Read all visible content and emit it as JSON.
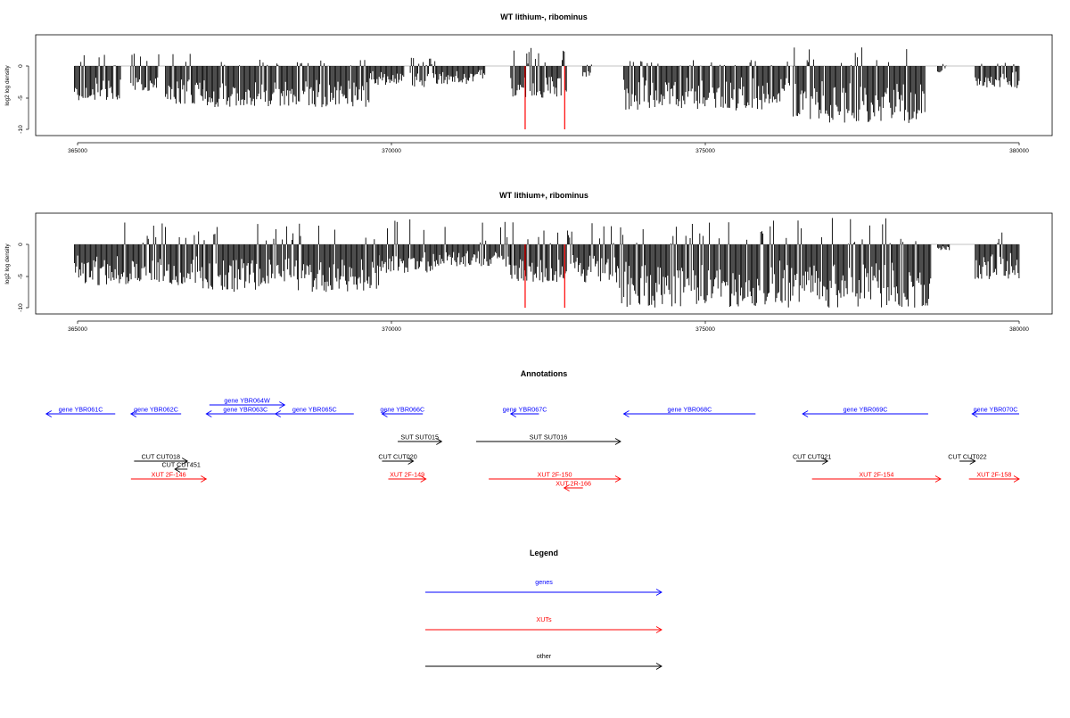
{
  "chart_data": [
    {
      "type": "bar",
      "title": "WT lithium-, ribominus",
      "ylabel": "log2 log density",
      "xlabel": "",
      "xlim": [
        364950,
        380500
      ],
      "ylim": [
        -10.5,
        5
      ],
      "xticks": [
        "365000",
        "370000",
        "375000",
        "380000"
      ],
      "yticks": [
        "0",
        "-5",
        "-10"
      ],
      "grid": false,
      "series_color": "#000000",
      "highlight_color": "#ff0000",
      "highlights": [
        {
          "x": 372130,
          "y": -10
        },
        {
          "x": 372760,
          "y": -10
        }
      ],
      "baseline_span": [
        364950,
        380000
      ],
      "coverage_segments": [
        {
          "start": 364950,
          "end": 365700,
          "min": -5.5,
          "max": 2.0
        },
        {
          "start": 365850,
          "end": 366300,
          "min": -4,
          "max": 2.2
        },
        {
          "start": 366400,
          "end": 367000,
          "min": -6,
          "max": 2.5
        },
        {
          "start": 367000,
          "end": 369650,
          "min": -6.5,
          "max": 1.0
        },
        {
          "start": 369650,
          "end": 370200,
          "min": -3,
          "max": 0
        },
        {
          "start": 370300,
          "end": 370700,
          "min": -3.5,
          "max": 1.5
        },
        {
          "start": 370700,
          "end": 371300,
          "min": -3,
          "max": 0
        },
        {
          "start": 371300,
          "end": 371500,
          "min": -2,
          "max": 1.0
        },
        {
          "start": 371900,
          "end": 372800,
          "min": -5,
          "max": 3.0
        },
        {
          "start": 373050,
          "end": 373200,
          "min": -2,
          "max": 1.0
        },
        {
          "start": 373700,
          "end": 376350,
          "min": -7,
          "max": 1.0
        },
        {
          "start": 376400,
          "end": 378500,
          "min": -9,
          "max": 3.0
        },
        {
          "start": 378700,
          "end": 378850,
          "min": -1,
          "max": 1.0
        },
        {
          "start": 379300,
          "end": 380000,
          "min": -3.5,
          "max": 0.5
        }
      ]
    },
    {
      "type": "bar",
      "title": "WT lithium+, ribominus",
      "ylabel": "log2 log density",
      "xlabel": "",
      "xlim": [
        364950,
        380500
      ],
      "ylim": [
        -10.5,
        5
      ],
      "xticks": [
        "365000",
        "370000",
        "375000",
        "380000"
      ],
      "yticks": [
        "0",
        "-5",
        "-10"
      ],
      "grid": false,
      "series_color": "#000000",
      "highlight_color": "#ff0000",
      "highlights": [
        {
          "x": 372130,
          "y": -10
        },
        {
          "x": 372760,
          "y": -10
        }
      ],
      "baseline_span": [
        364950,
        380000
      ],
      "coverage_segments": [
        {
          "start": 364950,
          "end": 367000,
          "min": -6.5,
          "max": 3.5
        },
        {
          "start": 367000,
          "end": 369800,
          "min": -7.5,
          "max": 3.5
        },
        {
          "start": 369800,
          "end": 370700,
          "min": -4.5,
          "max": 4.2
        },
        {
          "start": 370700,
          "end": 371900,
          "min": -3.5,
          "max": 4.0
        },
        {
          "start": 371900,
          "end": 373600,
          "min": -6,
          "max": 3.8
        },
        {
          "start": 373600,
          "end": 376000,
          "min": -10,
          "max": 3.5
        },
        {
          "start": 376000,
          "end": 378600,
          "min": -10,
          "max": 4.2
        },
        {
          "start": 378700,
          "end": 378900,
          "min": -1,
          "max": 2.0
        },
        {
          "start": 379300,
          "end": 380000,
          "min": -5.5,
          "max": 2.0
        }
      ]
    },
    {
      "type": "annotation-track",
      "title": "Annotations",
      "xlim": [
        364950,
        380500
      ],
      "features": [
        {
          "label": "gene YBR061C",
          "start": 365600,
          "end": 364500,
          "row": 0,
          "kind": "gene"
        },
        {
          "label": "gene YBR062C",
          "start": 366650,
          "end": 365850,
          "row": 0,
          "kind": "gene"
        },
        {
          "label": "gene YBR064W",
          "start": 367100,
          "end": 368300,
          "row": -1,
          "kind": "gene"
        },
        {
          "label": "gene YBR063C",
          "start": 368300,
          "end": 367050,
          "row": 0,
          "kind": "gene"
        },
        {
          "label": "gene YBR065C",
          "start": 369400,
          "end": 368150,
          "row": 0,
          "kind": "gene"
        },
        {
          "label": "gene YBR066C",
          "start": 370500,
          "end": 369850,
          "row": 0,
          "kind": "gene"
        },
        {
          "label": "gene YBR067C",
          "start": 372350,
          "end": 371900,
          "row": 0,
          "kind": "gene"
        },
        {
          "label": "gene YBR068C",
          "start": 375800,
          "end": 373700,
          "row": 0,
          "kind": "gene"
        },
        {
          "label": "gene YBR069C",
          "start": 378550,
          "end": 376550,
          "row": 0,
          "kind": "gene"
        },
        {
          "label": "gene YBR070C",
          "start": 380000,
          "end": 379250,
          "row": 0,
          "kind": "gene"
        },
        {
          "label": "SUT SUT015",
          "start": 370100,
          "end": 370800,
          "row": 1,
          "kind": "other"
        },
        {
          "label": "SUT SUT016",
          "start": 371350,
          "end": 373650,
          "row": 1,
          "kind": "other"
        },
        {
          "label": "CUT CUT018",
          "start": 365900,
          "end": 366750,
          "row": 2,
          "kind": "other"
        },
        {
          "label": "CUT CUT020",
          "start": 369850,
          "end": 370350,
          "row": 2,
          "kind": "other"
        },
        {
          "label": "CUT CUT021",
          "start": 376450,
          "end": 376950,
          "row": 2,
          "kind": "other"
        },
        {
          "label": "CUT CUT022",
          "start": 379050,
          "end": 379300,
          "row": 2,
          "kind": "other"
        },
        {
          "label": "CUT CUT451",
          "start": 366750,
          "end": 366550,
          "row": 2.5,
          "kind": "other"
        },
        {
          "label": "XUT 2F-146",
          "start": 365850,
          "end": 367050,
          "row": 3,
          "kind": "xut"
        },
        {
          "label": "XUT 2F-149",
          "start": 369950,
          "end": 370550,
          "row": 3,
          "kind": "xut"
        },
        {
          "label": "XUT 2F-150",
          "start": 371550,
          "end": 373650,
          "row": 3,
          "kind": "xut"
        },
        {
          "label": "XUT 2R-166",
          "start": 373050,
          "end": 372750,
          "row": 3.5,
          "kind": "xut"
        },
        {
          "label": "XUT 2F-154",
          "start": 376700,
          "end": 378750,
          "row": 3,
          "kind": "xut"
        },
        {
          "label": "XUT 2F-158",
          "start": 379200,
          "end": 380000,
          "row": 3,
          "kind": "xut"
        }
      ]
    },
    {
      "type": "legend",
      "title": "Legend",
      "entries": [
        {
          "label": "genes",
          "color": "#0000ff"
        },
        {
          "label": "XUTs",
          "color": "#ff0000"
        },
        {
          "label": "other",
          "color": "#000000"
        }
      ]
    }
  ],
  "colors": {
    "gene": "#0000ff",
    "xut": "#ff0000",
    "other": "#000000"
  }
}
